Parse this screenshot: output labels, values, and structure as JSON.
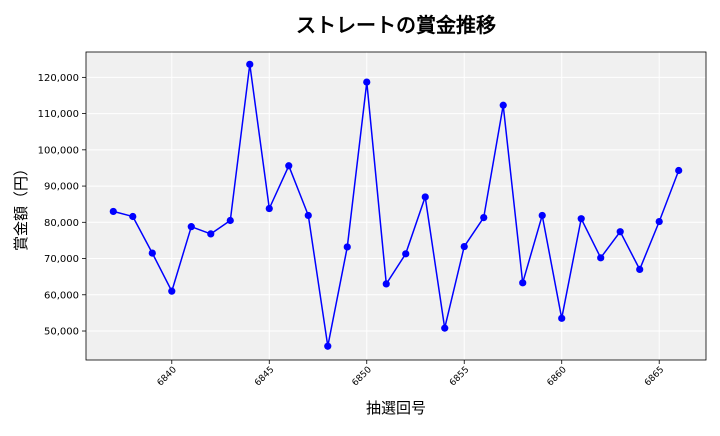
{
  "chart_data": {
    "type": "line",
    "title": "ストレートの賞金推移",
    "xlabel": "抽選回号",
    "ylabel": "賞金額（円）",
    "xlim": [
      6835.6,
      6867.4
    ],
    "ylim": [
      42000,
      127000
    ],
    "x_ticks": [
      6840,
      6845,
      6850,
      6855,
      6860,
      6865
    ],
    "y_ticks": [
      50000,
      60000,
      70000,
      80000,
      90000,
      100000,
      110000,
      120000
    ],
    "grid": true,
    "series": [
      {
        "color": "#0000ff",
        "x": [
          6837,
          6838,
          6839,
          6840,
          6841,
          6842,
          6843,
          6844,
          6845,
          6846,
          6847,
          6848,
          6849,
          6850,
          6851,
          6852,
          6853,
          6854,
          6855,
          6856,
          6857,
          6858,
          6859,
          6860,
          6861,
          6862,
          6863,
          6864,
          6865,
          6866
        ],
        "y": [
          83000,
          81600,
          71500,
          61000,
          78800,
          76800,
          80500,
          123600,
          83800,
          95600,
          81900,
          45800,
          73200,
          118700,
          63000,
          71300,
          87000,
          50800,
          73300,
          81300,
          112300,
          63300,
          81900,
          53500,
          81000,
          70200,
          77400,
          67000,
          80200,
          94300
        ]
      }
    ]
  },
  "colors": {
    "plot_background": "#f0f0f0",
    "grid": "#ffffff",
    "line": "#0000ff"
  }
}
